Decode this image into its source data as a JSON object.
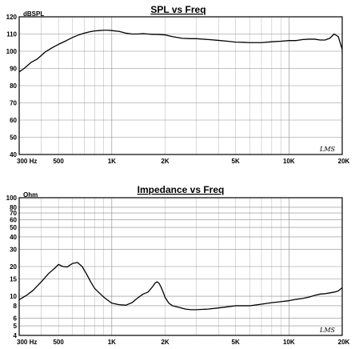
{
  "chart_data": [
    {
      "type": "line",
      "title": "SPL vs Freq",
      "ylabel": "dBSPL",
      "xlabel": "",
      "xscale": "log",
      "xlim": [
        300,
        20000
      ],
      "ylim": [
        40,
        120
      ],
      "yticks": [
        40,
        50,
        60,
        70,
        80,
        90,
        100,
        110,
        120
      ],
      "ytick_labels": [
        "40",
        "50",
        "60",
        "70",
        "80",
        "90",
        "100",
        "110",
        "120"
      ],
      "xtick_labels": [
        {
          "f": 300,
          "label": "300 Hz"
        },
        {
          "f": 500,
          "label": "500"
        },
        {
          "f": 1000,
          "label": "1K"
        },
        {
          "f": 2000,
          "label": "2K"
        },
        {
          "f": 5000,
          "label": "5K"
        },
        {
          "f": 10000,
          "label": "10K"
        },
        {
          "f": 20000,
          "label": "20K"
        }
      ],
      "grid": true,
      "watermark": "LMS",
      "series": [
        {
          "x": [
            300,
            320,
            350,
            380,
            420,
            460,
            500,
            550,
            600,
            650,
            700,
            750,
            800,
            850,
            900,
            950,
            1000,
            1100,
            1200,
            1300,
            1400,
            1500,
            1600,
            1700,
            1800,
            2000,
            2200,
            2500,
            2800,
            3000,
            3500,
            4000,
            4500,
            5000,
            5500,
            6000,
            7000,
            8000,
            9000,
            10000,
            11000,
            12000,
            13000,
            14000,
            15000,
            16000,
            17000,
            18000,
            19000,
            20000
          ],
          "y": [
            88,
            90,
            93.5,
            95.5,
            99.5,
            102,
            104,
            106,
            108,
            109.5,
            110.5,
            111.3,
            111.8,
            112,
            112.2,
            112.2,
            112,
            111.5,
            110.5,
            110,
            110,
            110.2,
            110,
            109.8,
            109.8,
            109.5,
            108.5,
            107.5,
            107.3,
            107.3,
            106.8,
            106.3,
            105.8,
            105.3,
            105.2,
            105,
            105,
            105.5,
            105.8,
            106.2,
            106.2,
            106.8,
            107,
            107,
            106.5,
            106.5,
            107.5,
            110,
            108.5,
            101
          ]
        }
      ]
    },
    {
      "type": "line",
      "title": "Impedance vs Freq",
      "ylabel": "Ohm",
      "xlabel": "",
      "xscale": "log",
      "yscale": "log",
      "xlim": [
        300,
        20000
      ],
      "ylim": [
        4,
        100
      ],
      "yticks": [
        4,
        5,
        6,
        8,
        10,
        15,
        20,
        30,
        40,
        50,
        60,
        70,
        80,
        100
      ],
      "ytick_labels": [
        "4",
        "5",
        "6",
        "8",
        "10",
        "15",
        "20",
        "30",
        "40",
        "50",
        "60",
        "70",
        "80",
        "100"
      ],
      "xtick_labels": [
        {
          "f": 300,
          "label": "300 Hz"
        },
        {
          "f": 500,
          "label": "500"
        },
        {
          "f": 1000,
          "label": "1K"
        },
        {
          "f": 2000,
          "label": "2K"
        },
        {
          "f": 5000,
          "label": "5K"
        },
        {
          "f": 10000,
          "label": "10K"
        },
        {
          "f": 20000,
          "label": "20K"
        }
      ],
      "grid": true,
      "watermark": "LMS",
      "series": [
        {
          "x": [
            300,
            330,
            360,
            400,
            440,
            480,
            500,
            530,
            560,
            600,
            640,
            680,
            720,
            760,
            800,
            850,
            900,
            950,
            1000,
            1100,
            1200,
            1300,
            1400,
            1500,
            1600,
            1700,
            1750,
            1800,
            1850,
            1900,
            1950,
            2000,
            2100,
            2200,
            2400,
            2600,
            2800,
            3000,
            3500,
            4000,
            4500,
            5000,
            5500,
            6000,
            7000,
            8000,
            9000,
            10000,
            11000,
            12000,
            13000,
            14000,
            15000,
            16000,
            17000,
            18000,
            19000,
            20000
          ],
          "y": [
            9.2,
            10.2,
            11.5,
            14,
            17,
            19.5,
            21,
            20,
            19.8,
            21.5,
            22,
            20,
            16.8,
            14,
            12,
            10.8,
            9.8,
            9.1,
            8.5,
            8.2,
            8.1,
            8.6,
            9.6,
            10.5,
            11,
            12.5,
            13.5,
            14,
            13.5,
            12.3,
            11,
            9.7,
            8.5,
            8,
            7.7,
            7.4,
            7.3,
            7.3,
            7.4,
            7.6,
            7.8,
            8,
            8,
            8,
            8.3,
            8.6,
            8.8,
            9,
            9.3,
            9.5,
            9.8,
            10.2,
            10.5,
            10.6,
            10.8,
            11,
            11.3,
            12.2
          ]
        }
      ]
    }
  ]
}
